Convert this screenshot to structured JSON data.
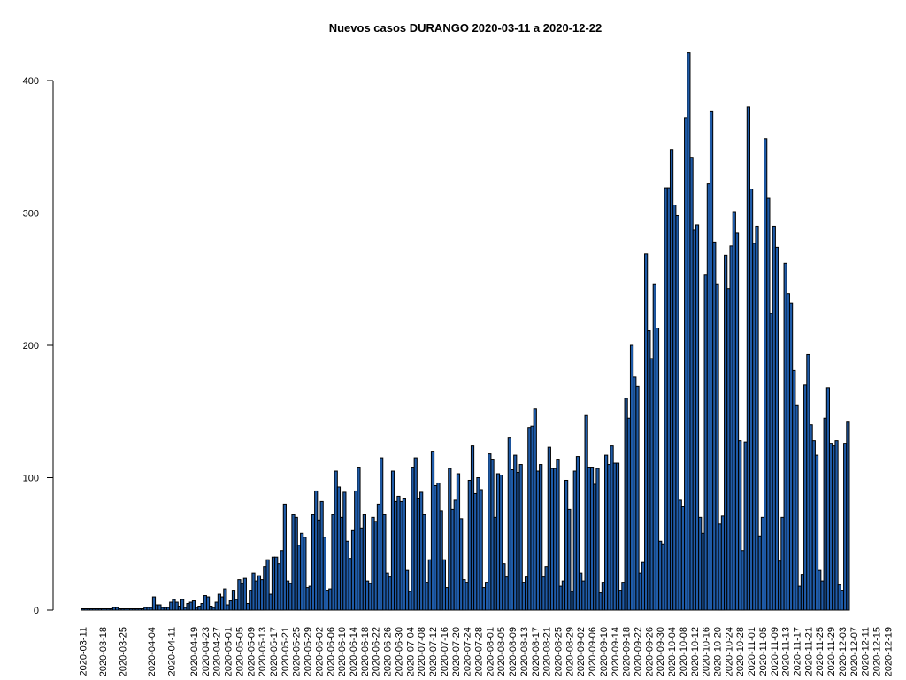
{
  "chart_data": {
    "type": "bar",
    "title": "Nuevos casos DURANGO 2020-03-11 a 2020-12-22",
    "xlabel": "",
    "ylabel": "",
    "start_date": "2020-03-11",
    "end_date": "2020-12-22",
    "ylim": [
      0,
      420
    ],
    "yticks": [
      0,
      100,
      200,
      300,
      400
    ],
    "grid": false,
    "bar_color": "#1f5ba8",
    "bar_edge_color": "#000000",
    "xtick_labels": [
      "2020-03-11",
      "2020-03-18",
      "2020-03-25",
      "2020-04-04",
      "2020-04-11",
      "2020-04-19",
      "2020-04-23",
      "2020-04-27",
      "2020-05-01",
      "2020-05-05",
      "2020-05-09",
      "2020-05-13",
      "2020-05-17",
      "2020-05-21",
      "2020-05-25",
      "2020-05-29",
      "2020-06-02",
      "2020-06-06",
      "2020-06-10",
      "2020-06-14",
      "2020-06-18",
      "2020-06-22",
      "2020-06-26",
      "2020-06-30",
      "2020-07-04",
      "2020-07-08",
      "2020-07-12",
      "2020-07-16",
      "2020-07-20",
      "2020-07-24",
      "2020-07-28",
      "2020-08-01",
      "2020-08-05",
      "2020-08-09",
      "2020-08-13",
      "2020-08-17",
      "2020-08-21",
      "2020-08-25",
      "2020-08-29",
      "2020-09-02",
      "2020-09-06",
      "2020-09-10",
      "2020-09-14",
      "2020-09-18",
      "2020-09-22",
      "2020-09-26",
      "2020-09-30",
      "2020-10-04",
      "2020-10-08",
      "2020-10-12",
      "2020-10-16",
      "2020-10-20",
      "2020-10-24",
      "2020-10-28",
      "2020-11-01",
      "2020-11-05",
      "2020-11-09",
      "2020-11-13",
      "2020-11-17",
      "2020-11-21",
      "2020-11-25",
      "2020-11-29",
      "2020-12-03",
      "2020-12-07",
      "2020-12-11",
      "2020-12-15",
      "2020-12-19"
    ],
    "values": [
      1,
      1,
      1,
      1,
      1,
      1,
      1,
      1,
      1,
      1,
      1,
      2,
      2,
      1,
      1,
      1,
      1,
      1,
      1,
      1,
      1,
      1,
      2,
      2,
      2,
      10,
      4,
      4,
      2,
      2,
      2,
      6,
      8,
      6,
      3,
      8,
      2,
      5,
      6,
      7,
      2,
      3,
      5,
      11,
      10,
      3,
      2,
      6,
      12,
      10,
      16,
      4,
      7,
      15,
      8,
      23,
      20,
      24,
      5,
      15,
      28,
      22,
      26,
      23,
      33,
      38,
      12,
      40,
      40,
      35,
      45,
      80,
      22,
      20,
      72,
      70,
      49,
      58,
      55,
      17,
      18,
      72,
      90,
      68,
      82,
      55,
      15,
      16,
      72,
      105,
      93,
      70,
      89,
      52,
      39,
      60,
      90,
      108,
      62,
      72,
      22,
      20,
      70,
      67,
      80,
      115,
      72,
      28,
      25,
      105,
      82,
      86,
      82,
      84,
      30,
      14,
      108,
      115,
      84,
      89,
      72,
      21,
      38,
      120,
      94,
      96,
      75,
      38,
      17,
      107,
      76,
      83,
      103,
      69,
      23,
      21,
      98,
      124,
      88,
      100,
      91,
      17,
      21,
      118,
      114,
      70,
      103,
      102,
      35,
      25,
      130,
      106,
      117,
      104,
      110,
      21,
      25,
      138,
      139,
      152,
      105,
      110,
      25,
      33,
      123,
      107,
      107,
      114,
      18,
      22,
      98,
      76,
      14,
      105,
      116,
      28,
      22,
      147,
      108,
      108,
      95,
      107,
      13,
      21,
      117,
      110,
      124,
      111,
      111,
      15,
      21,
      160,
      145,
      200,
      176,
      169,
      28,
      36,
      269,
      211,
      190,
      246,
      213,
      52,
      50,
      319,
      319,
      348,
      306,
      298,
      83,
      78,
      372,
      421,
      342,
      287,
      291,
      70,
      58,
      253,
      322,
      377,
      278,
      246,
      65,
      71,
      268,
      243,
      275,
      301,
      285,
      128,
      45,
      127,
      380,
      318,
      277,
      290,
      56,
      70,
      356,
      311,
      224,
      290,
      274,
      37,
      70,
      262,
      239,
      232,
      181,
      155,
      18,
      27,
      170,
      193,
      140,
      128,
      117,
      30,
      22,
      145,
      168,
      126,
      124,
      128,
      19,
      15,
      126,
      142
    ]
  }
}
